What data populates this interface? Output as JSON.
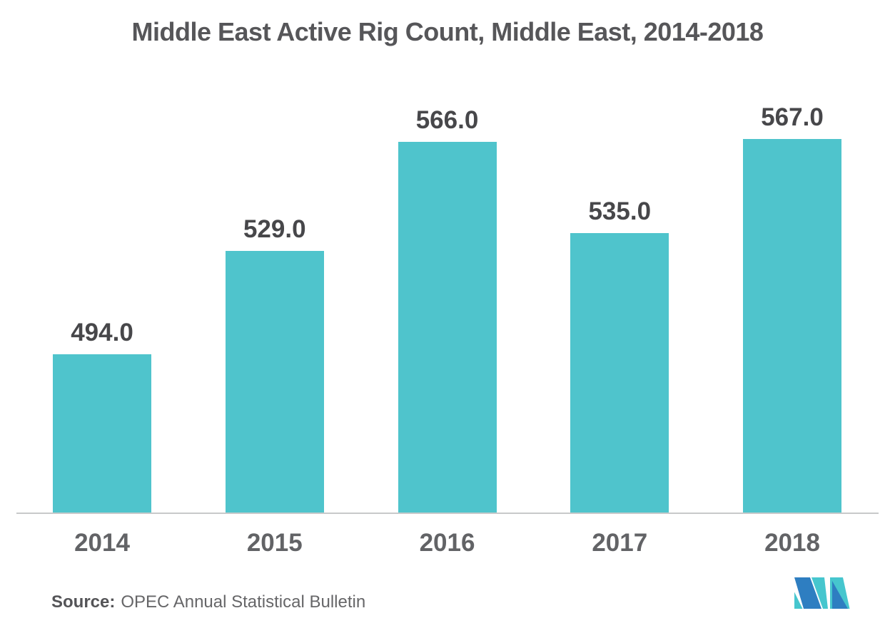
{
  "title": "Middle East Active Rig Count, Middle East, 2014-2018",
  "source": {
    "label": "Source:",
    "text": "OPEC Annual Statistical Bulletin"
  },
  "logo": {
    "name": "mordor-intelligence-m-logo",
    "blue": "#2E7EC1",
    "teal": "#46C6CE"
  },
  "colors": {
    "background": "#FFFFFF",
    "bar": "#4FC4CC",
    "title": "#565659",
    "value_label": "#47474A",
    "axis_label": "#626366",
    "axis_line": "#C8C9CA",
    "source_label": "#545457",
    "source_text": "#666668"
  },
  "chart_data": {
    "type": "bar",
    "title": "Middle East Active Rig Count, Middle East, 2014-2018",
    "categories": [
      "2014",
      "2015",
      "2016",
      "2017",
      "2018"
    ],
    "values": [
      494.0,
      529.0,
      566.0,
      535.0,
      567.0
    ],
    "value_labels": [
      "494.0",
      "529.0",
      "566.0",
      "535.0",
      "567.0"
    ],
    "xlabel": "",
    "ylabel": "",
    "ylim": [
      440,
      588
    ],
    "grid": false,
    "legend": false,
    "bar_color": "#4FC4CC",
    "value_labels_position": "above-bars",
    "axis_baseline_only": true
  }
}
